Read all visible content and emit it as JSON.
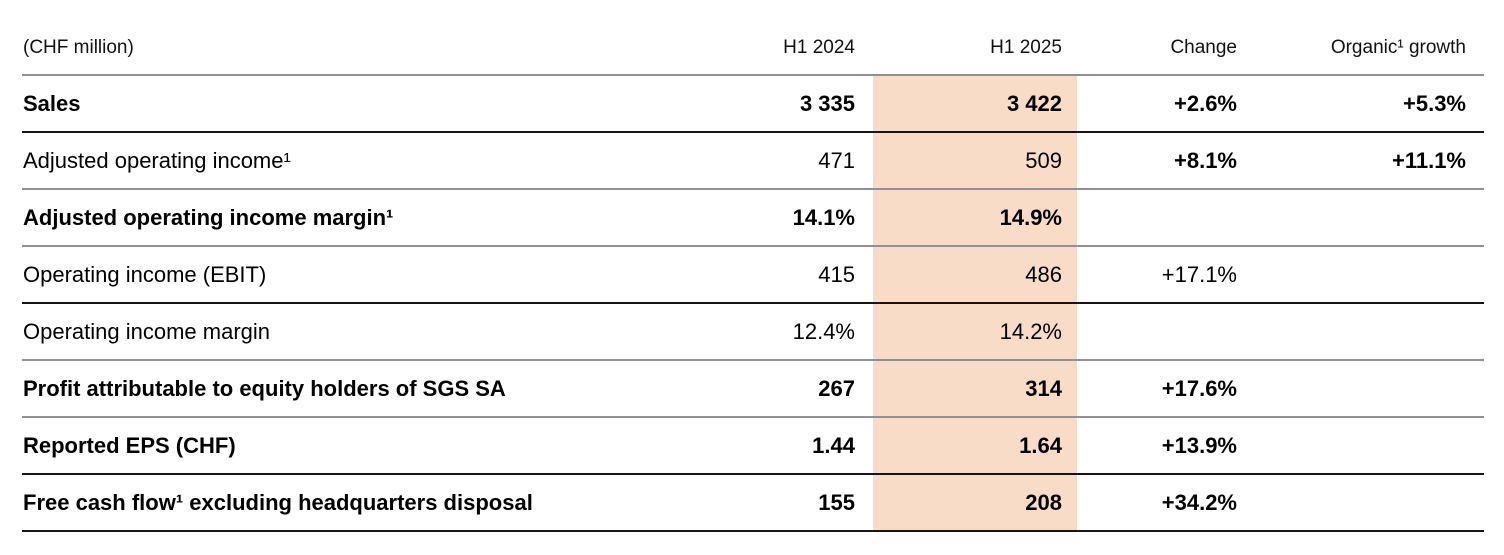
{
  "table": {
    "unit_label": "(CHF million)",
    "columns": {
      "h1_2024": "H1 2024",
      "h1_2025": "H1 2025",
      "change": "Change",
      "organic": "Organic¹ growth"
    },
    "highlight_color": "#f9dcc8",
    "rows": [
      {
        "label": "Sales",
        "h1_2024": "3 335",
        "h1_2025": "3 422",
        "change": "+2.6%",
        "organic": "+5.3%"
      },
      {
        "label": "Adjusted operating income¹",
        "h1_2024": "471",
        "h1_2025": "509",
        "change": "+8.1%",
        "organic": "+11.1%"
      },
      {
        "label": "Adjusted operating income margin¹",
        "h1_2024": "14.1%",
        "h1_2025": "14.9%",
        "change": "",
        "organic": ""
      },
      {
        "label": "Operating income (EBIT)",
        "h1_2024": "415",
        "h1_2025": "486",
        "change": "+17.1%",
        "organic": ""
      },
      {
        "label": "Operating income margin",
        "h1_2024": "12.4%",
        "h1_2025": "14.2%",
        "change": "",
        "organic": ""
      },
      {
        "label": "Profit attributable to equity holders of SGS SA",
        "h1_2024": "267",
        "h1_2025": "314",
        "change": "+17.6%",
        "organic": ""
      },
      {
        "label": "Reported EPS (CHF)",
        "h1_2024": "1.44",
        "h1_2025": "1.64",
        "change": "+13.9%",
        "organic": ""
      },
      {
        "label": "Free cash flow¹ excluding headquarters disposal",
        "h1_2024": "155",
        "h1_2025": "208",
        "change": "+34.2%",
        "organic": ""
      }
    ]
  }
}
